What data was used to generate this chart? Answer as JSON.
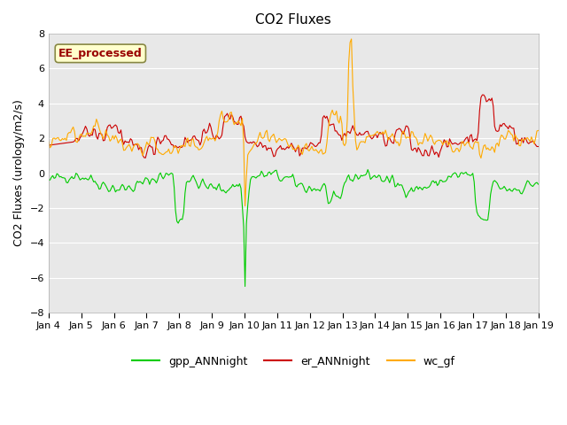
{
  "title": "CO2 Fluxes",
  "ylabel": "CO2 Fluxes (urology/m2/s)",
  "xlabel": "",
  "annotation": "EE_processed",
  "ylim": [
    -8,
    8
  ],
  "yticks": [
    -8,
    -6,
    -4,
    -2,
    0,
    2,
    4,
    6,
    8
  ],
  "xtick_labels": [
    "Jan 4",
    "Jan 5",
    "Jan 6",
    "Jan 7",
    "Jan 8",
    "Jan 9",
    "Jan 10",
    "Jan 11",
    "Jan 12",
    "Jan 13",
    "Jan 14",
    "Jan 15",
    "Jan 16",
    "Jan 17",
    "Jan 18",
    "Jan 19"
  ],
  "colors": {
    "gpp": "#00cc00",
    "er": "#cc0000",
    "wc": "#ffaa00",
    "background": "#e8e8e8",
    "annotation_bg": "#ffffcc",
    "annotation_text": "#990000"
  },
  "legend": {
    "gpp_label": "gpp_ANNnight",
    "er_label": "er_ANNnight",
    "wc_label": "wc_gf"
  },
  "seed": 42,
  "n_points": 360
}
